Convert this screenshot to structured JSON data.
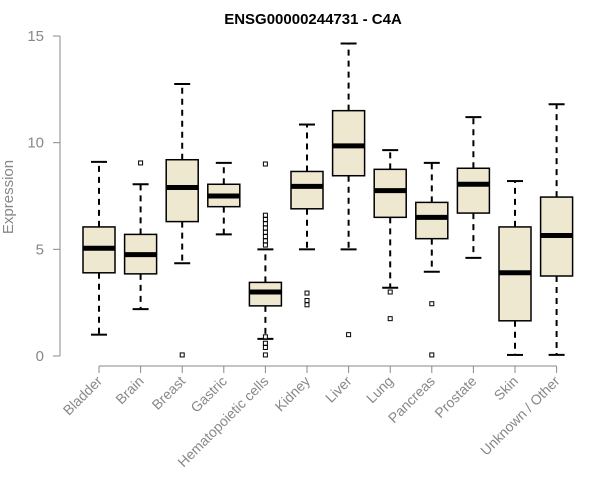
{
  "chart_data": {
    "type": "boxplot",
    "title": "ENSG00000244731 - C4A",
    "xlabel": "",
    "ylabel": "Expression",
    "ylim": [
      0,
      15
    ],
    "yticks": [
      0,
      5,
      10,
      15
    ],
    "colors": {
      "box_fill": "#efe8d0",
      "box_stroke": "#000000",
      "median": "#000000",
      "axis": "#888888"
    },
    "categories": [
      "Bladder",
      "Brain",
      "Breast",
      "Gastric",
      "Hematopoietic cells",
      "Kidney",
      "Liver",
      "Lung",
      "Pancreas",
      "Prostate",
      "Skin",
      "Unknown / Other"
    ],
    "boxes": [
      {
        "name": "Bladder",
        "whisker_low": 1.0,
        "q1": 3.9,
        "median": 5.05,
        "q3": 6.05,
        "whisker_high": 9.1,
        "outliers": []
      },
      {
        "name": "Brain",
        "whisker_low": 2.2,
        "q1": 3.85,
        "median": 4.75,
        "q3": 5.7,
        "whisker_high": 8.05,
        "outliers": [
          9.05
        ]
      },
      {
        "name": "Breast",
        "whisker_low": 4.35,
        "q1": 6.3,
        "median": 7.9,
        "q3": 9.2,
        "whisker_high": 12.75,
        "outliers": [
          0.05
        ]
      },
      {
        "name": "Gastric",
        "whisker_low": 5.7,
        "q1": 7.0,
        "median": 7.5,
        "q3": 8.05,
        "whisker_high": 9.05,
        "outliers": []
      },
      {
        "name": "Hematopoietic cells",
        "whisker_low": 0.8,
        "q1": 2.35,
        "median": 3.0,
        "q3": 3.45,
        "whisker_high": 5.0,
        "outliers": [
          0.05,
          0.4,
          0.6,
          0.9,
          5.2,
          5.4,
          5.6,
          5.8,
          6.0,
          6.2,
          6.4,
          6.6,
          9.0
        ]
      },
      {
        "name": "Kidney",
        "whisker_low": 5.0,
        "q1": 6.9,
        "median": 7.95,
        "q3": 8.65,
        "whisker_high": 10.85,
        "outliers": [
          2.95,
          2.6,
          2.4
        ]
      },
      {
        "name": "Liver",
        "whisker_low": 5.0,
        "q1": 8.45,
        "median": 9.85,
        "q3": 11.5,
        "whisker_high": 14.65,
        "outliers": [
          1.0
        ]
      },
      {
        "name": "Lung",
        "whisker_low": 3.2,
        "q1": 6.5,
        "median": 7.75,
        "q3": 8.75,
        "whisker_high": 9.65,
        "outliers": [
          3.0,
          1.75
        ]
      },
      {
        "name": "Pancreas",
        "whisker_low": 3.95,
        "q1": 5.5,
        "median": 6.5,
        "q3": 7.2,
        "whisker_high": 9.05,
        "outliers": [
          2.45,
          0.05
        ]
      },
      {
        "name": "Prostate",
        "whisker_low": 4.6,
        "q1": 6.7,
        "median": 8.05,
        "q3": 8.8,
        "whisker_high": 11.2,
        "outliers": []
      },
      {
        "name": "Skin",
        "whisker_low": 0.05,
        "q1": 1.65,
        "median": 3.9,
        "q3": 6.05,
        "whisker_high": 8.2,
        "outliers": []
      },
      {
        "name": "Unknown / Other",
        "whisker_low": 0.05,
        "q1": 3.75,
        "median": 5.65,
        "q3": 7.45,
        "whisker_high": 11.8,
        "outliers": []
      }
    ]
  }
}
